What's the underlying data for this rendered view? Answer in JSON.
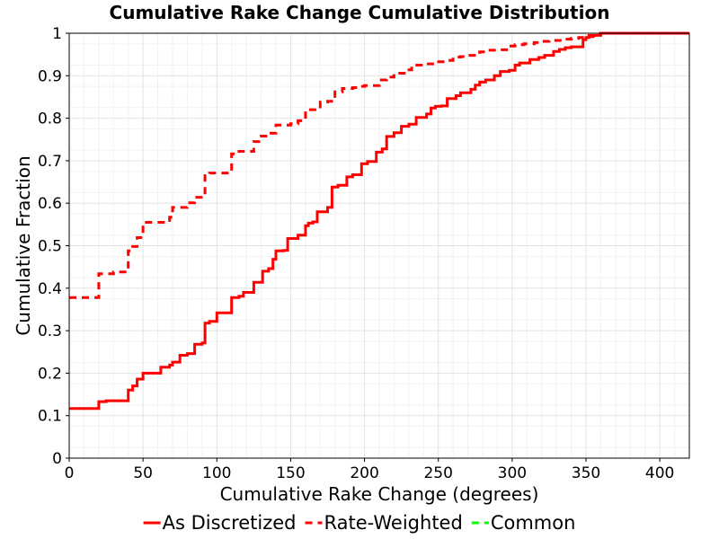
{
  "chart_data": {
    "type": "line",
    "title": "Cumulative Rake Change Cumulative Distribution",
    "xlabel": "Cumulative Rake Change (degrees)",
    "ylabel": "Cumulative Fraction",
    "xlim": [
      0,
      420
    ],
    "ylim": [
      0,
      1
    ],
    "xticks": [
      0,
      50,
      100,
      150,
      200,
      250,
      300,
      350,
      400
    ],
    "yticks": [
      0,
      0.1,
      0.2,
      0.3,
      0.4,
      0.5,
      0.6,
      0.7,
      0.8,
      0.9,
      1
    ],
    "ytick_labels": [
      "0",
      "0.1",
      "0.2",
      "0.3",
      "0.4",
      "0.5",
      "0.6",
      "0.7",
      "0.8",
      "0.9",
      "1"
    ],
    "grid": true,
    "legend_position": "bottom",
    "series": [
      {
        "name": "As Discretized",
        "color": "#ff0000",
        "style": "solid",
        "x": [
          0,
          18,
          20,
          25,
          38,
          40,
          43,
          46,
          50,
          60,
          62,
          68,
          70,
          75,
          80,
          85,
          90,
          92,
          95,
          100,
          108,
          110,
          115,
          118,
          125,
          128,
          131,
          135,
          138,
          140,
          145,
          148,
          155,
          160,
          162,
          165,
          168,
          175,
          178,
          182,
          188,
          192,
          196,
          198,
          202,
          208,
          212,
          215,
          220,
          225,
          230,
          235,
          242,
          245,
          248,
          252,
          256,
          262,
          265,
          272,
          275,
          278,
          282,
          288,
          292,
          298,
          302,
          305,
          312,
          318,
          322,
          328,
          332,
          336,
          340,
          348,
          350,
          352,
          356,
          360,
          420
        ],
        "y": [
          0.117,
          0.117,
          0.133,
          0.135,
          0.135,
          0.16,
          0.17,
          0.186,
          0.2,
          0.2,
          0.214,
          0.219,
          0.226,
          0.242,
          0.246,
          0.268,
          0.271,
          0.318,
          0.322,
          0.342,
          0.342,
          0.378,
          0.381,
          0.39,
          0.414,
          0.414,
          0.44,
          0.446,
          0.468,
          0.488,
          0.489,
          0.517,
          0.525,
          0.547,
          0.553,
          0.556,
          0.58,
          0.59,
          0.638,
          0.642,
          0.662,
          0.667,
          0.667,
          0.693,
          0.698,
          0.72,
          0.728,
          0.757,
          0.766,
          0.781,
          0.786,
          0.802,
          0.81,
          0.824,
          0.828,
          0.829,
          0.846,
          0.853,
          0.86,
          0.868,
          0.878,
          0.885,
          0.89,
          0.9,
          0.91,
          0.913,
          0.925,
          0.93,
          0.938,
          0.943,
          0.948,
          0.957,
          0.962,
          0.966,
          0.968,
          0.985,
          0.99,
          0.995,
          0.995,
          1.0,
          1.0
        ]
      },
      {
        "name": "Rate-Weighted",
        "color": "#ff0000",
        "style": "dashed",
        "x": [
          0,
          18,
          20,
          30,
          38,
          40,
          43,
          46,
          50,
          60,
          68,
          70,
          80,
          85,
          90,
          92,
          95,
          108,
          110,
          115,
          125,
          130,
          135,
          140,
          150,
          155,
          160,
          162,
          170,
          175,
          180,
          185,
          192,
          195,
          200,
          210,
          215,
          220,
          228,
          232,
          240,
          248,
          255,
          260,
          265,
          270,
          278,
          282,
          290,
          298,
          302,
          308,
          315,
          320,
          325,
          330,
          335,
          340,
          345,
          350,
          355,
          360,
          420
        ],
        "y": [
          0.378,
          0.378,
          0.434,
          0.438,
          0.438,
          0.488,
          0.498,
          0.519,
          0.555,
          0.555,
          0.567,
          0.59,
          0.601,
          0.614,
          0.614,
          0.665,
          0.671,
          0.675,
          0.716,
          0.722,
          0.745,
          0.758,
          0.765,
          0.784,
          0.787,
          0.794,
          0.818,
          0.82,
          0.838,
          0.84,
          0.862,
          0.87,
          0.872,
          0.875,
          0.877,
          0.89,
          0.897,
          0.906,
          0.914,
          0.925,
          0.928,
          0.933,
          0.936,
          0.944,
          0.945,
          0.948,
          0.956,
          0.96,
          0.961,
          0.97,
          0.973,
          0.975,
          0.978,
          0.981,
          0.983,
          0.983,
          0.986,
          0.988,
          0.99,
          0.992,
          0.998,
          1.0,
          1.0
        ]
      },
      {
        "name": "Common",
        "color": "#00ff00",
        "style": "dashed",
        "x": [],
        "y": []
      }
    ]
  }
}
